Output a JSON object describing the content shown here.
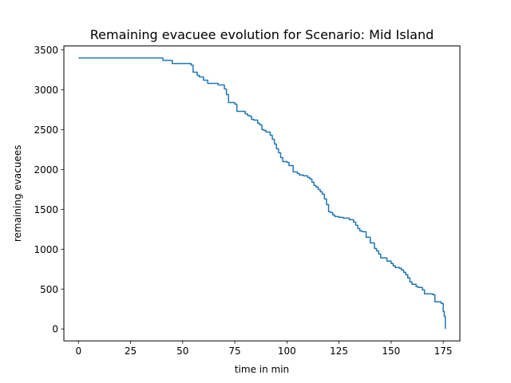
{
  "chart_data": {
    "type": "line",
    "title": "Remaining evacuee evolution for Scenario: Mid Island",
    "xlabel": "time in min",
    "ylabel": "remaining evacuees",
    "xlim": [
      -7,
      183
    ],
    "ylim": [
      -150,
      3550
    ],
    "xticks": [
      0,
      25,
      50,
      75,
      100,
      125,
      150,
      175
    ],
    "yticks": [
      0,
      500,
      1000,
      1500,
      2000,
      2500,
      3000,
      3500
    ],
    "grid": false,
    "step": true,
    "color": "#1f77b4",
    "series": [
      {
        "x": [
          0,
          40.5,
          45,
          54,
          55,
          57,
          58,
          60,
          62,
          67,
          70,
          71,
          72,
          75,
          76,
          80,
          81,
          82,
          83,
          84,
          86,
          87,
          88,
          89,
          90,
          92,
          93,
          94,
          95,
          96,
          97,
          98,
          100,
          101,
          103,
          105,
          106,
          108,
          110,
          111,
          112,
          113,
          114,
          115,
          116,
          117,
          118,
          119,
          120,
          121,
          122,
          123,
          125,
          127,
          130,
          132,
          133,
          134,
          135,
          136,
          138,
          140,
          142,
          143,
          144,
          145,
          148,
          150,
          151,
          152,
          154,
          155,
          156,
          157,
          158,
          159,
          160,
          162,
          163,
          165,
          166,
          170,
          171,
          172,
          173,
          174,
          175,
          175.5,
          176
        ],
        "y": [
          3400,
          3370,
          3330,
          3310,
          3220,
          3180,
          3160,
          3120,
          3080,
          3060,
          3010,
          2940,
          2840,
          2820,
          2730,
          2700,
          2680,
          2670,
          2630,
          2620,
          2580,
          2560,
          2500,
          2490,
          2470,
          2430,
          2380,
          2320,
          2260,
          2210,
          2150,
          2100,
          2090,
          2050,
          1970,
          1950,
          1930,
          1920,
          1900,
          1880,
          1840,
          1800,
          1780,
          1750,
          1720,
          1690,
          1630,
          1560,
          1470,
          1460,
          1430,
          1410,
          1400,
          1390,
          1370,
          1340,
          1300,
          1260,
          1230,
          1220,
          1150,
          1080,
          1010,
          980,
          940,
          890,
          850,
          820,
          790,
          770,
          760,
          740,
          710,
          680,
          640,
          590,
          560,
          530,
          520,
          490,
          440,
          430,
          340,
          340,
          340,
          320,
          220,
          160,
          0
        ]
      }
    ]
  }
}
